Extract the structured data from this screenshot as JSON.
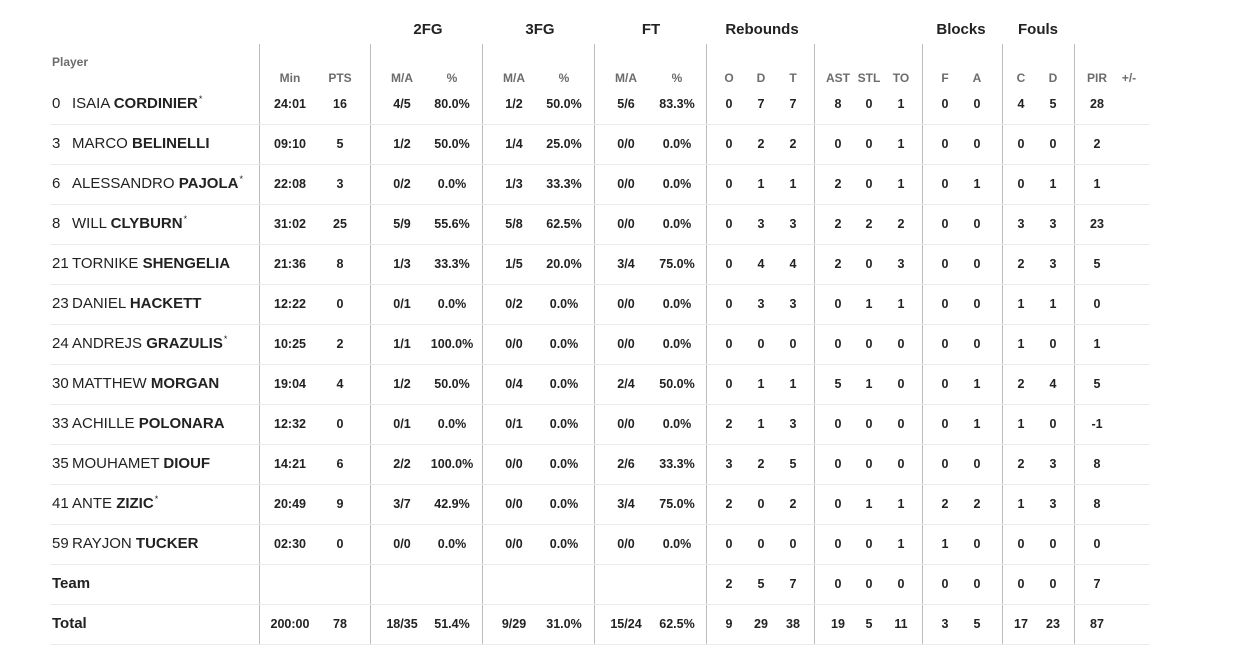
{
  "groups": [
    "2FG",
    "3FG",
    "FT",
    "Rebounds",
    "Blocks",
    "Fouls"
  ],
  "player_header": "Player",
  "subheaders": [
    "Min",
    "PTS",
    "M/A",
    "%",
    "M/A",
    "%",
    "M/A",
    "%",
    "O",
    "D",
    "T",
    "AST",
    "STL",
    "TO",
    "F",
    "A",
    "C",
    "D",
    "PIR",
    "+/-"
  ],
  "players": [
    {
      "num": "0",
      "first": "ISAIA",
      "last": "CORDINIER",
      "starter": true,
      "stats": [
        "24:01",
        "16",
        "4/5",
        "80.0%",
        "1/2",
        "50.0%",
        "5/6",
        "83.3%",
        "0",
        "7",
        "7",
        "8",
        "0",
        "1",
        "0",
        "0",
        "4",
        "5",
        "28",
        ""
      ]
    },
    {
      "num": "3",
      "first": "MARCO",
      "last": "BELINELLI",
      "starter": false,
      "stats": [
        "09:10",
        "5",
        "1/2",
        "50.0%",
        "1/4",
        "25.0%",
        "0/0",
        "0.0%",
        "0",
        "2",
        "2",
        "0",
        "0",
        "1",
        "0",
        "0",
        "0",
        "0",
        "2",
        ""
      ]
    },
    {
      "num": "6",
      "first": "ALESSANDRO",
      "last": "PAJOLA",
      "starter": true,
      "stats": [
        "22:08",
        "3",
        "0/2",
        "0.0%",
        "1/3",
        "33.3%",
        "0/0",
        "0.0%",
        "0",
        "1",
        "1",
        "2",
        "0",
        "1",
        "0",
        "1",
        "0",
        "1",
        "1",
        ""
      ]
    },
    {
      "num": "8",
      "first": "WILL",
      "last": "CLYBURN",
      "starter": true,
      "stats": [
        "31:02",
        "25",
        "5/9",
        "55.6%",
        "5/8",
        "62.5%",
        "0/0",
        "0.0%",
        "0",
        "3",
        "3",
        "2",
        "2",
        "2",
        "0",
        "0",
        "3",
        "3",
        "23",
        ""
      ]
    },
    {
      "num": "21",
      "first": "TORNIKE",
      "last": "SHENGELIA",
      "starter": false,
      "stats": [
        "21:36",
        "8",
        "1/3",
        "33.3%",
        "1/5",
        "20.0%",
        "3/4",
        "75.0%",
        "0",
        "4",
        "4",
        "2",
        "0",
        "3",
        "0",
        "0",
        "2",
        "3",
        "5",
        ""
      ]
    },
    {
      "num": "23",
      "first": "DANIEL",
      "last": "HACKETT",
      "starter": false,
      "stats": [
        "12:22",
        "0",
        "0/1",
        "0.0%",
        "0/2",
        "0.0%",
        "0/0",
        "0.0%",
        "0",
        "3",
        "3",
        "0",
        "1",
        "1",
        "0",
        "0",
        "1",
        "1",
        "0",
        ""
      ]
    },
    {
      "num": "24",
      "first": "ANDREJS",
      "last": "GRAZULIS",
      "starter": true,
      "stats": [
        "10:25",
        "2",
        "1/1",
        "100.0%",
        "0/0",
        "0.0%",
        "0/0",
        "0.0%",
        "0",
        "0",
        "0",
        "0",
        "0",
        "0",
        "0",
        "0",
        "1",
        "0",
        "1",
        ""
      ]
    },
    {
      "num": "30",
      "first": "MATTHEW",
      "last": "MORGAN",
      "starter": false,
      "stats": [
        "19:04",
        "4",
        "1/2",
        "50.0%",
        "0/4",
        "0.0%",
        "2/4",
        "50.0%",
        "0",
        "1",
        "1",
        "5",
        "1",
        "0",
        "0",
        "1",
        "2",
        "4",
        "5",
        ""
      ]
    },
    {
      "num": "33",
      "first": "ACHILLE",
      "last": "POLONARA",
      "starter": false,
      "stats": [
        "12:32",
        "0",
        "0/1",
        "0.0%",
        "0/1",
        "0.0%",
        "0/0",
        "0.0%",
        "2",
        "1",
        "3",
        "0",
        "0",
        "0",
        "0",
        "1",
        "1",
        "0",
        "-1",
        ""
      ]
    },
    {
      "num": "35",
      "first": "MOUHAMET",
      "last": "DIOUF",
      "starter": false,
      "stats": [
        "14:21",
        "6",
        "2/2",
        "100.0%",
        "0/0",
        "0.0%",
        "2/6",
        "33.3%",
        "3",
        "2",
        "5",
        "0",
        "0",
        "0",
        "0",
        "0",
        "2",
        "3",
        "8",
        ""
      ]
    },
    {
      "num": "41",
      "first": "ANTE",
      "last": "ZIZIC",
      "starter": true,
      "stats": [
        "20:49",
        "9",
        "3/7",
        "42.9%",
        "0/0",
        "0.0%",
        "3/4",
        "75.0%",
        "2",
        "0",
        "2",
        "0",
        "1",
        "1",
        "2",
        "2",
        "1",
        "3",
        "8",
        ""
      ]
    },
    {
      "num": "59",
      "first": "RAYJON",
      "last": "TUCKER",
      "starter": false,
      "stats": [
        "02:30",
        "0",
        "0/0",
        "0.0%",
        "0/0",
        "0.0%",
        "0/0",
        "0.0%",
        "0",
        "0",
        "0",
        "0",
        "0",
        "1",
        "1",
        "0",
        "0",
        "0",
        "0",
        ""
      ]
    }
  ],
  "team_row": {
    "label": "Team",
    "stats": [
      "",
      "",
      "",
      "",
      "",
      "",
      "",
      "",
      "2",
      "5",
      "7",
      "0",
      "0",
      "0",
      "0",
      "0",
      "0",
      "0",
      "7",
      ""
    ]
  },
  "total_row": {
    "label": "Total",
    "stats": [
      "200:00",
      "78",
      "18/35",
      "51.4%",
      "9/29",
      "31.0%",
      "15/24",
      "62.5%",
      "9",
      "29",
      "38",
      "19",
      "5",
      "11",
      "3",
      "5",
      "17",
      "23",
      "87",
      ""
    ]
  },
  "starter_mark": "*"
}
